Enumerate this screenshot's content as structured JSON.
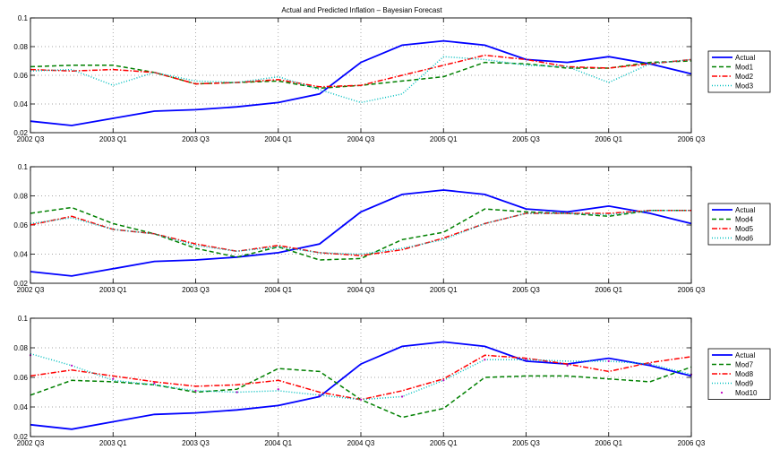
{
  "chart_data": [
    {
      "type": "line",
      "title": "Actual and Predicted Inflation – Bayesian Forecast",
      "x": [
        "2002 Q3",
        "2002 Q4",
        "2003 Q1",
        "2003 Q2",
        "2003 Q3",
        "2003 Q4",
        "2004 Q1",
        "2004 Q2",
        "2004 Q3",
        "2004 Q4",
        "2005 Q1",
        "2005 Q2",
        "2005 Q3",
        "2005 Q4",
        "2006 Q1",
        "2006 Q2",
        "2006 Q3"
      ],
      "xticks": [
        "2002 Q3",
        "2003 Q1",
        "2003 Q3",
        "2004 Q1",
        "2004 Q3",
        "2005 Q1",
        "2005 Q3",
        "2006 Q1",
        "2006 Q3"
      ],
      "yticks": [
        "0.02",
        "0.04",
        "0.06",
        "0.08",
        "0.1"
      ],
      "ylim": [
        0.02,
        0.1
      ],
      "grid": true,
      "legend_position": "right",
      "series": [
        {
          "name": "Actual",
          "color": "#0000ff",
          "style": "solid",
          "values": [
            0.028,
            0.025,
            0.03,
            0.035,
            0.036,
            0.038,
            0.041,
            0.047,
            0.069,
            0.081,
            0.084,
            0.081,
            0.071,
            0.069,
            0.073,
            0.068,
            0.061
          ]
        },
        {
          "name": "Mod1",
          "color": "#008000",
          "style": "dashed",
          "values": [
            0.066,
            0.067,
            0.067,
            0.062,
            0.054,
            0.055,
            0.056,
            0.051,
            0.053,
            0.056,
            0.059,
            0.069,
            0.068,
            0.065,
            0.065,
            0.069,
            0.07
          ]
        },
        {
          "name": "Mod2",
          "color": "#ff0000",
          "style": "dashdot",
          "values": [
            0.064,
            0.063,
            0.064,
            0.062,
            0.054,
            0.055,
            0.057,
            0.052,
            0.053,
            0.06,
            0.067,
            0.074,
            0.071,
            0.066,
            0.065,
            0.068,
            0.071
          ]
        },
        {
          "name": "Mod3",
          "color": "#00bfbf",
          "style": "dotted",
          "values": [
            0.063,
            0.064,
            0.053,
            0.062,
            0.056,
            0.055,
            0.059,
            0.05,
            0.041,
            0.047,
            0.073,
            0.071,
            0.067,
            0.066,
            0.055,
            0.068,
            0.071
          ]
        }
      ]
    },
    {
      "type": "line",
      "x": [
        "2002 Q3",
        "2002 Q4",
        "2003 Q1",
        "2003 Q2",
        "2003 Q3",
        "2003 Q4",
        "2004 Q1",
        "2004 Q2",
        "2004 Q3",
        "2004 Q4",
        "2005 Q1",
        "2005 Q2",
        "2005 Q3",
        "2005 Q4",
        "2006 Q1",
        "2006 Q2",
        "2006 Q3"
      ],
      "xticks": [
        "2002 Q3",
        "2003 Q1",
        "2003 Q3",
        "2004 Q1",
        "2004 Q3",
        "2005 Q1",
        "2005 Q3",
        "2006 Q1",
        "2006 Q3"
      ],
      "yticks": [
        "0.02",
        "0.04",
        "0.06",
        "0.08",
        "0.1"
      ],
      "ylim": [
        0.02,
        0.1
      ],
      "grid": true,
      "legend_position": "right",
      "series": [
        {
          "name": "Actual",
          "color": "#0000ff",
          "style": "solid",
          "values": [
            0.028,
            0.025,
            0.03,
            0.035,
            0.036,
            0.038,
            0.041,
            0.047,
            0.069,
            0.081,
            0.084,
            0.081,
            0.071,
            0.069,
            0.073,
            0.068,
            0.061
          ]
        },
        {
          "name": "Mod4",
          "color": "#008000",
          "style": "dashed",
          "values": [
            0.068,
            0.072,
            0.061,
            0.054,
            0.044,
            0.038,
            0.045,
            0.036,
            0.037,
            0.05,
            0.055,
            0.071,
            0.069,
            0.068,
            0.066,
            0.07,
            0.07
          ]
        },
        {
          "name": "Mod5",
          "color": "#ff0000",
          "style": "dashdot",
          "values": [
            0.06,
            0.066,
            0.057,
            0.054,
            0.047,
            0.042,
            0.046,
            0.041,
            0.039,
            0.043,
            0.051,
            0.061,
            0.068,
            0.068,
            0.068,
            0.07,
            0.07
          ]
        },
        {
          "name": "Mod6",
          "color": "#00bfbf",
          "style": "dotted",
          "values": [
            0.061,
            0.065,
            0.057,
            0.054,
            0.046,
            0.042,
            0.045,
            0.041,
            0.04,
            0.044,
            0.05,
            0.061,
            0.068,
            0.068,
            0.067,
            0.07,
            0.07
          ]
        }
      ]
    },
    {
      "type": "line",
      "x": [
        "2002 Q3",
        "2002 Q4",
        "2003 Q1",
        "2003 Q2",
        "2003 Q3",
        "2003 Q4",
        "2004 Q1",
        "2004 Q2",
        "2004 Q3",
        "2004 Q4",
        "2005 Q1",
        "2005 Q2",
        "2005 Q3",
        "2005 Q4",
        "2006 Q1",
        "2006 Q2",
        "2006 Q3"
      ],
      "xticks": [
        "2002 Q3",
        "2003 Q1",
        "2003 Q3",
        "2004 Q1",
        "2004 Q3",
        "2005 Q1",
        "2005 Q3",
        "2006 Q1",
        "2006 Q3"
      ],
      "yticks": [
        "0.02",
        "0.04",
        "0.06",
        "0.08",
        "0.1"
      ],
      "ylim": [
        0.02,
        0.1
      ],
      "grid": true,
      "legend_position": "right",
      "series": [
        {
          "name": "Actual",
          "color": "#0000ff",
          "style": "solid",
          "values": [
            0.028,
            0.025,
            0.03,
            0.035,
            0.036,
            0.038,
            0.041,
            0.047,
            0.069,
            0.081,
            0.084,
            0.081,
            0.071,
            0.069,
            0.073,
            0.068,
            0.061
          ]
        },
        {
          "name": "Mod7",
          "color": "#008000",
          "style": "dashed",
          "values": [
            0.048,
            0.058,
            0.057,
            0.055,
            0.05,
            0.052,
            0.066,
            0.064,
            0.045,
            0.033,
            0.039,
            0.06,
            0.061,
            0.061,
            0.059,
            0.057,
            0.067
          ]
        },
        {
          "name": "Mod8",
          "color": "#ff0000",
          "style": "dashdot",
          "values": [
            0.061,
            0.065,
            0.061,
            0.057,
            0.054,
            0.055,
            0.058,
            0.05,
            0.045,
            0.051,
            0.059,
            0.075,
            0.073,
            0.069,
            0.064,
            0.07,
            0.074
          ]
        },
        {
          "name": "Mod9",
          "color": "#00bfbf",
          "style": "dotted",
          "values": [
            0.076,
            0.068,
            0.058,
            0.055,
            0.051,
            0.05,
            0.051,
            0.048,
            0.045,
            0.047,
            0.058,
            0.072,
            0.072,
            0.071,
            0.071,
            0.069,
            0.062
          ]
        },
        {
          "name": "Mod10",
          "color": "#bf00bf",
          "style": "point",
          "values": [
            0.075,
            0.068,
            0.059,
            0.056,
            0.051,
            0.05,
            0.052,
            0.048,
            0.045,
            0.047,
            0.058,
            0.072,
            0.072,
            0.068,
            0.071,
            0.069,
            0.062
          ]
        }
      ]
    }
  ]
}
